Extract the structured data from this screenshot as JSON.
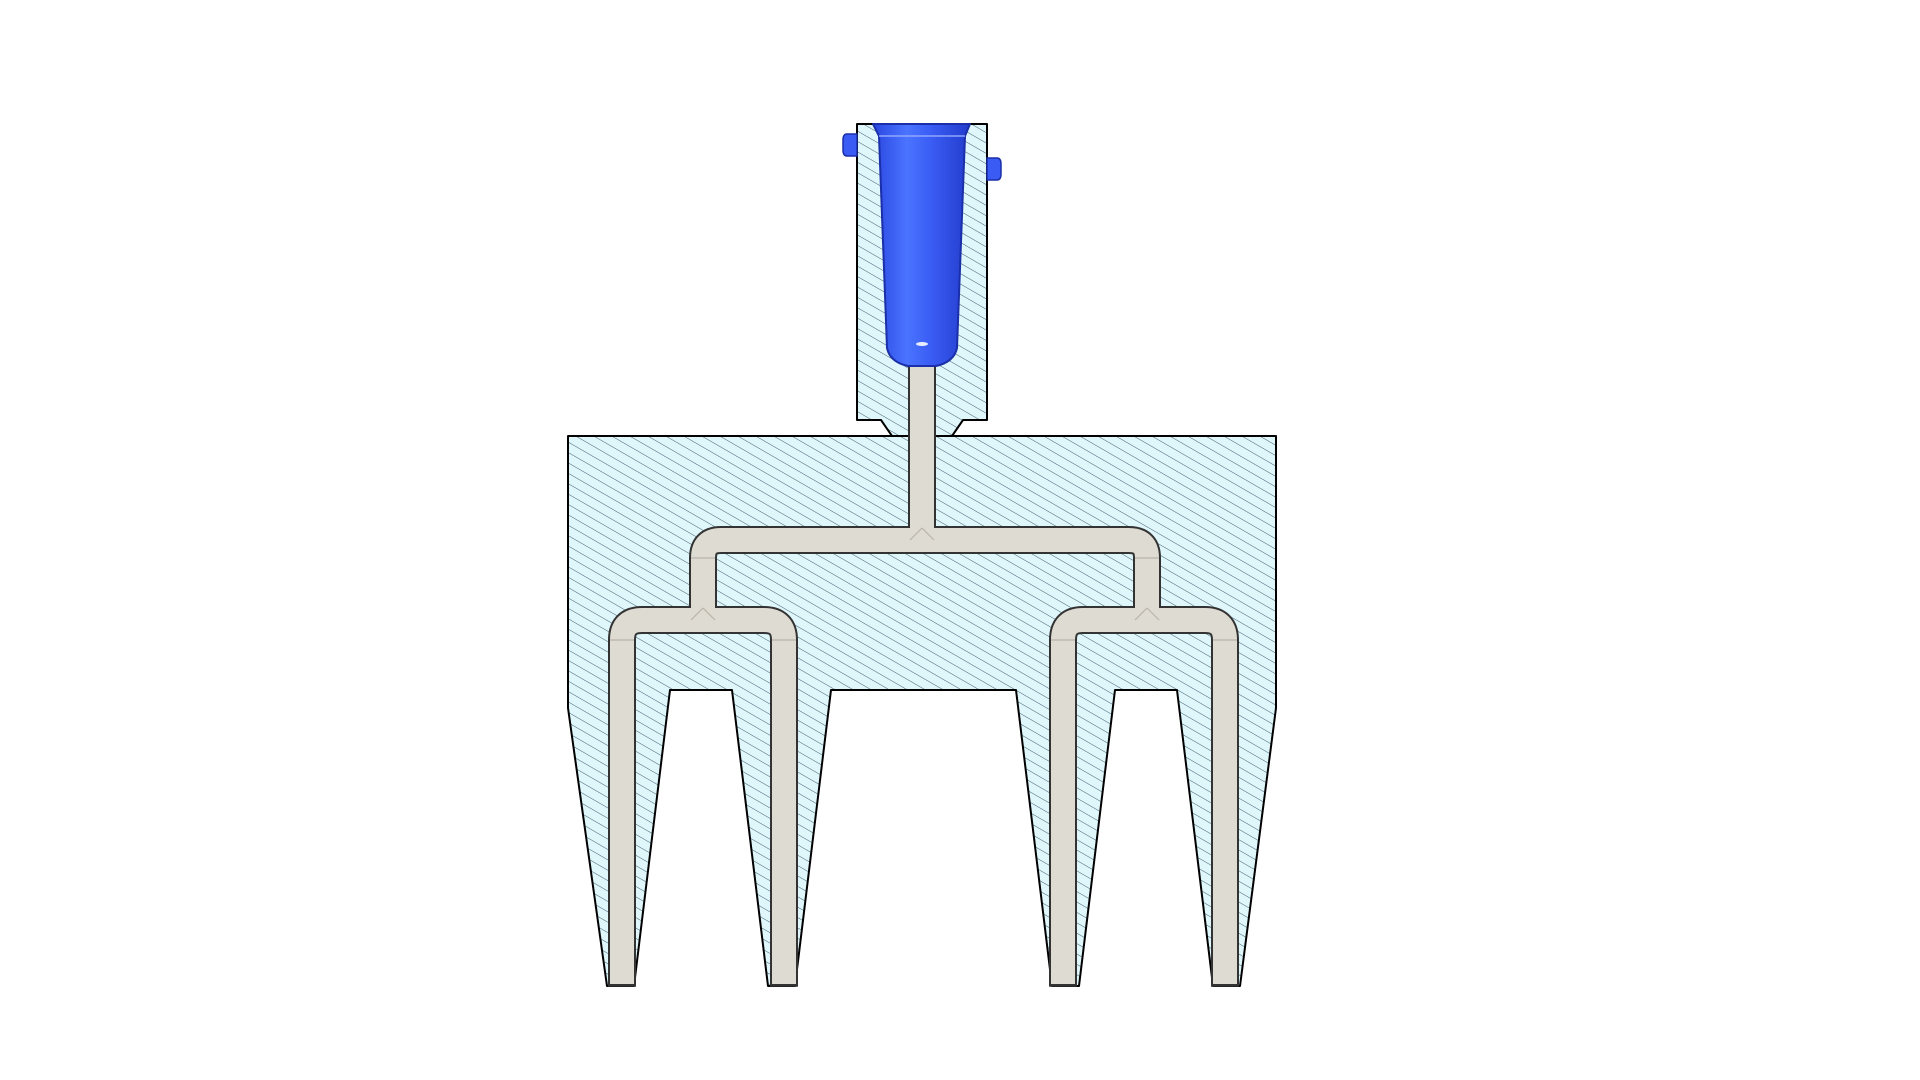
{
  "diagram": {
    "view": "section-view",
    "parts": {
      "manifold": {
        "name": "manifold-body",
        "fill": "#dff6fb",
        "hatch": "#2f4f5f",
        "outline": "#000000"
      },
      "channels": {
        "name": "flow-channels",
        "fill": "#dedbd2",
        "edge": "#b8b4aa",
        "outline": "#333333"
      },
      "fitting": {
        "name": "luer-fitting",
        "fill": "#3256f0",
        "highlight": "#5b82ff",
        "shadow": "#1f36c4"
      }
    }
  }
}
